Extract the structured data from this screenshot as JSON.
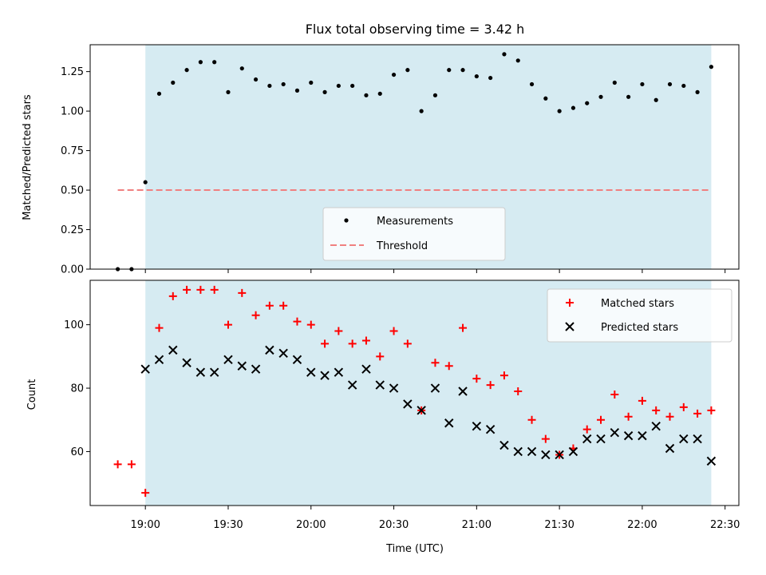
{
  "chart_data": [
    {
      "type": "scatter",
      "title": "Flux total observing time = 3.42 h",
      "ylabel": "Matched/Predicted stars",
      "xlabel": "",
      "ylim": [
        0.0,
        1.42
      ],
      "xlim": [
        "18:40",
        "22:35"
      ],
      "y_ticks": [
        "0.00",
        "0.25",
        "0.50",
        "0.75",
        "1.00",
        "1.25"
      ],
      "grid": false,
      "legend_position": "bottom-center",
      "shaded_interval": [
        "19:00",
        "22:25"
      ],
      "series": [
        {
          "name": "Measurements",
          "marker": "dot",
          "color": "#000000",
          "points": [
            [
              "18:50",
              0.0
            ],
            [
              "18:55",
              0.0
            ],
            [
              "19:00",
              0.55
            ],
            [
              "19:05",
              1.11
            ],
            [
              "19:10",
              1.18
            ],
            [
              "19:15",
              1.26
            ],
            [
              "19:20",
              1.31
            ],
            [
              "19:25",
              1.31
            ],
            [
              "19:30",
              1.12
            ],
            [
              "19:35",
              1.27
            ],
            [
              "19:40",
              1.2
            ],
            [
              "19:45",
              1.16
            ],
            [
              "19:50",
              1.17
            ],
            [
              "19:55",
              1.13
            ],
            [
              "20:00",
              1.18
            ],
            [
              "20:05",
              1.12
            ],
            [
              "20:10",
              1.16
            ],
            [
              "20:15",
              1.16
            ],
            [
              "20:20",
              1.1
            ],
            [
              "20:25",
              1.11
            ],
            [
              "20:30",
              1.23
            ],
            [
              "20:35",
              1.26
            ],
            [
              "20:40",
              1.0
            ],
            [
              "20:45",
              1.1
            ],
            [
              "20:50",
              1.26
            ],
            [
              "20:55",
              1.26
            ],
            [
              "21:00",
              1.22
            ],
            [
              "21:05",
              1.21
            ],
            [
              "21:10",
              1.36
            ],
            [
              "21:15",
              1.32
            ],
            [
              "21:20",
              1.17
            ],
            [
              "21:25",
              1.08
            ],
            [
              "21:30",
              1.0
            ],
            [
              "21:35",
              1.02
            ],
            [
              "21:40",
              1.05
            ],
            [
              "21:45",
              1.09
            ],
            [
              "21:50",
              1.18
            ],
            [
              "21:55",
              1.09
            ],
            [
              "22:00",
              1.17
            ],
            [
              "22:05",
              1.07
            ],
            [
              "22:10",
              1.17
            ],
            [
              "22:15",
              1.16
            ],
            [
              "22:20",
              1.12
            ],
            [
              "22:25",
              1.28
            ]
          ]
        },
        {
          "name": "Threshold",
          "line_style": "dashed",
          "color": "#f08080",
          "points": [
            [
              "18:50",
              0.5
            ],
            [
              "22:25",
              0.5
            ]
          ]
        }
      ]
    },
    {
      "type": "scatter",
      "title": "",
      "xlabel": "Time (UTC)",
      "ylabel": "Count",
      "ylim": [
        43,
        114
      ],
      "xlim": [
        "18:40",
        "22:35"
      ],
      "x_ticks": [
        "19:00",
        "19:30",
        "20:00",
        "20:30",
        "21:00",
        "21:30",
        "22:00",
        "22:30"
      ],
      "y_ticks": [
        "60",
        "80",
        "100"
      ],
      "grid": false,
      "legend_position": "top-right",
      "shaded_interval": [
        "19:00",
        "22:25"
      ],
      "x": [
        "18:50",
        "18:55",
        "19:00",
        "19:05",
        "19:10",
        "19:15",
        "19:20",
        "19:25",
        "19:30",
        "19:35",
        "19:40",
        "19:45",
        "19:50",
        "19:55",
        "20:00",
        "20:05",
        "20:10",
        "20:15",
        "20:20",
        "20:25",
        "20:30",
        "20:35",
        "20:40",
        "20:45",
        "20:50",
        "20:55",
        "21:00",
        "21:05",
        "21:10",
        "21:15",
        "21:20",
        "21:25",
        "21:30",
        "21:35",
        "21:40",
        "21:45",
        "21:50",
        "21:55",
        "22:00",
        "22:05",
        "22:10",
        "22:15",
        "22:20",
        "22:25"
      ],
      "series": [
        {
          "name": "Matched stars",
          "marker": "plus",
          "color": "#ff0000",
          "values": [
            56,
            56,
            47,
            99,
            109,
            111,
            111,
            111,
            100,
            110,
            103,
            106,
            106,
            101,
            100,
            94,
            98,
            94,
            95,
            90,
            98,
            94,
            73,
            88,
            87,
            99,
            83,
            81,
            84,
            79,
            70,
            64,
            59,
            61,
            67,
            70,
            78,
            71,
            76,
            73,
            71,
            74,
            72,
            73
          ]
        },
        {
          "name": "Predicted stars",
          "marker": "x",
          "color": "#000000",
          "values": [
            null,
            null,
            86,
            89,
            92,
            88,
            85,
            85,
            89,
            87,
            86,
            92,
            91,
            89,
            85,
            84,
            85,
            81,
            86,
            81,
            80,
            75,
            73,
            80,
            69,
            79,
            68,
            67,
            62,
            60,
            60,
            59,
            59,
            60,
            64,
            64,
            66,
            65,
            65,
            68,
            61,
            64,
            64,
            57
          ]
        }
      ]
    }
  ],
  "colors": {
    "shade": "#add8e6",
    "matched": "#ff0000",
    "predicted": "#000000",
    "threshold": "#f08080"
  }
}
